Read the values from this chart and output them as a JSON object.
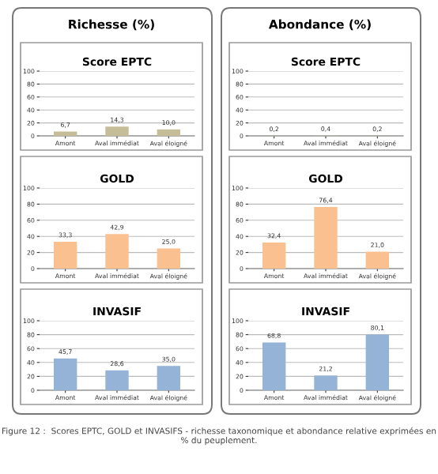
{
  "chart_data": [
    {
      "type": "bar",
      "title": "Score EPTC",
      "annotations": [
        "Richesse (%)"
      ],
      "categories": [
        "Amont",
        "Aval immédiat",
        "Aval éloigné"
      ],
      "values": [
        6.7,
        14.3,
        10.0
      ],
      "value_labels": [
        "6,7",
        "14,3",
        "10,0"
      ],
      "color": "#c4bd97",
      "ylim": [
        0,
        100
      ],
      "yticks": [
        0,
        20,
        40,
        60,
        80,
        100
      ],
      "grid": "y"
    },
    {
      "type": "bar",
      "title": "Score EPTC",
      "annotations": [
        "Abondance (%)"
      ],
      "categories": [
        "Amont",
        "Aval immédiat",
        "Aval éloigné"
      ],
      "values": [
        0.2,
        0.4,
        0.2
      ],
      "value_labels": [
        "0,2",
        "0,4",
        "0,2"
      ],
      "color": "#c4bd97",
      "ylim": [
        0,
        100
      ],
      "yticks": [
        0,
        20,
        40,
        60,
        80,
        100
      ],
      "grid": "y"
    },
    {
      "type": "bar",
      "title": "GOLD",
      "categories": [
        "Amont",
        "Aval immédiat",
        "Aval éloigné"
      ],
      "values": [
        33.3,
        42.9,
        25.0
      ],
      "value_labels": [
        "33,3",
        "42,9",
        "25,0"
      ],
      "color": "#fac090",
      "ylim": [
        0,
        100
      ],
      "yticks": [
        0,
        20,
        40,
        60,
        80,
        100
      ],
      "grid": "y"
    },
    {
      "type": "bar",
      "title": "GOLD",
      "categories": [
        "Amont",
        "Aval immédiat",
        "Aval éloigné"
      ],
      "values": [
        32.4,
        76.4,
        21.0
      ],
      "value_labels": [
        "32,4",
        "76,4",
        "21,0"
      ],
      "color": "#fac090",
      "ylim": [
        0,
        100
      ],
      "yticks": [
        0,
        20,
        40,
        60,
        80,
        100
      ],
      "grid": "y"
    },
    {
      "type": "bar",
      "title": "INVASIF",
      "annotations": [
        "Figure 12 :  Scores EPTC, GOLD et INVASIFS - richesse taxonomique et abondance relative exprimées en % du peuplement."
      ],
      "categories": [
        "Amont",
        "Aval immédiat",
        "Aval éloigné"
      ],
      "values": [
        45.7,
        28.6,
        35.0
      ],
      "value_labels": [
        "45,7",
        "28,6",
        "35,0"
      ],
      "color": "#95b3d7",
      "ylim": [
        0,
        100
      ],
      "yticks": [
        0,
        20,
        40,
        60,
        80,
        100
      ],
      "grid": "y"
    },
    {
      "type": "bar",
      "title": "INVASIF",
      "categories": [
        "Amont",
        "Aval immédiat",
        "Aval éloigné"
      ],
      "values": [
        68.8,
        21.2,
        80.1
      ],
      "value_labels": [
        "68,8",
        "21,2",
        "80,1"
      ],
      "color": "#95b3d7",
      "ylim": [
        0,
        100
      ],
      "yticks": [
        0,
        20,
        40,
        60,
        80,
        100
      ],
      "grid": "y"
    }
  ]
}
